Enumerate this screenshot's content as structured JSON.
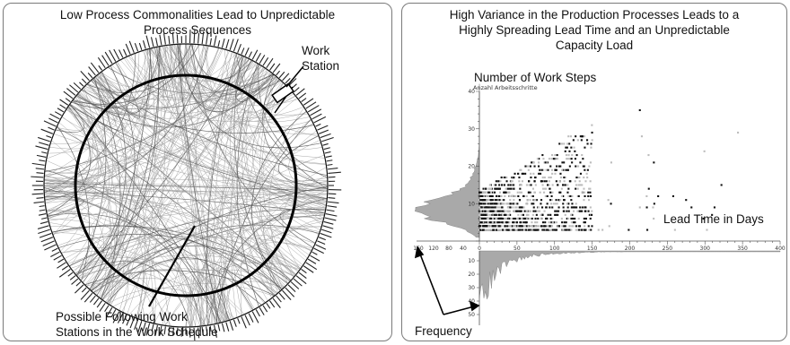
{
  "left_panel": {
    "title_line1": "Low Process Commonalities Lead to Unpredictable",
    "title_line2": "Process Sequences",
    "work_station_line1": "Work",
    "work_station_line2": "Station",
    "following_line1": "Possible Following Work",
    "following_line2": "Stations in the Work Schedule"
  },
  "right_panel": {
    "title_line1": "High Variance in the Production Processes Leads to a",
    "title_line2": "Highly Spreading Lead Time and an Unpredictable",
    "title_line3": "Capacity Load",
    "y_axis_label": "Number of Work Steps",
    "y_axis_sublabel": "Anzahl Arbeitsschritte",
    "x_axis_label": "Lead Time in Days",
    "frequency_label": "Frequency",
    "colors": {
      "dark": "#111111",
      "light": "#bdbdbd",
      "hist": "#a9a9a9"
    }
  },
  "chart_data": {
    "type": "scatter",
    "x_ticks": [
      "0",
      "50",
      "100",
      "150",
      "200",
      "250",
      "300",
      "350",
      "400"
    ],
    "y_ticks": [
      "10",
      "20",
      "30",
      "40"
    ],
    "left_hist_ticks": [
      "160",
      "120",
      "80",
      "40"
    ],
    "bottom_hist_ticks": [
      "10",
      "20",
      "30",
      "40",
      "50"
    ],
    "xlim": [
      0,
      400
    ],
    "ylim": [
      0,
      40
    ]
  }
}
